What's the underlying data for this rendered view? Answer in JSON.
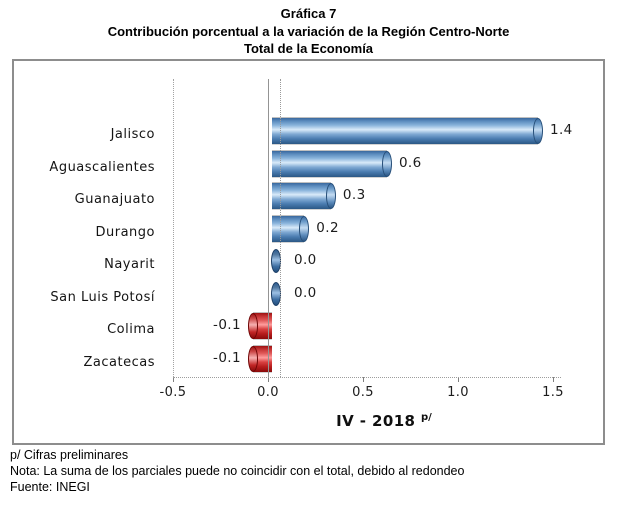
{
  "title": {
    "line1": "Gráfica 7",
    "line2": "Contribución porcentual a la variación de la Región Centro-Norte",
    "line3": "Total de la Economía"
  },
  "chart_data": {
    "type": "bar",
    "orientation": "horizontal",
    "title": "Contribución porcentual a la variación de la Región Centro-Norte, Total de la Economía",
    "categories": [
      "Jalisco",
      "Aguascalientes",
      "Guanajuato",
      "Durango",
      "Nayarit",
      "San Luis Potosí",
      "Colima",
      "Zacatecas"
    ],
    "values": [
      1.4,
      0.6,
      0.3,
      0.2,
      0.0,
      0.0,
      -0.1,
      -0.1
    ],
    "values_drawn": [
      1.4,
      0.605,
      0.31,
      0.17,
      0,
      0,
      -0.1,
      -0.1
    ],
    "labels": [
      "1.4",
      "0.6",
      "0.3",
      "0.2",
      "0.0",
      "0.0",
      "-0.1",
      "-0.1"
    ],
    "x_ticks": [
      "-0.5",
      "0.0",
      "0.5",
      "1.0",
      "1.5"
    ],
    "xlim": [
      -0.5,
      1.5
    ],
    "xlabel": "IV - 2018",
    "xlabel_superscript": "p/",
    "legend": "none",
    "grid": "vertical dotted gridline at -0.5 and solid category axis at 0, dotted x-axis line",
    "positive_color": "#4f81bd",
    "negative_color": "#c00000",
    "bar_style": "3d-cylinder"
  },
  "footer": {
    "note1": "p/ Cifras preliminares",
    "note2": "Nota: La suma de los parciales puede no coincidir con el total, debido al redondeo",
    "note3": "Fuente: INEGI"
  }
}
